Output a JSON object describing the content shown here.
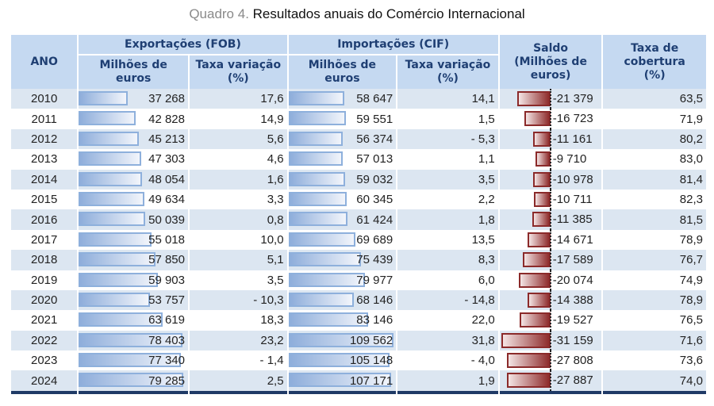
{
  "title": {
    "number": "Quadro 4.",
    "text": "Resultados anuais do Comércio Internacional"
  },
  "headers": {
    "ano": "ANO",
    "exportacoes": "Exportações (FOB)",
    "importacoes": "Importações (CIF)",
    "milhoes_1": "Milhões de",
    "milhoes_2": "euros",
    "taxa_var_1": "Taxa variação",
    "taxa_var_2": "(%)",
    "saldo_1": "Saldo",
    "saldo_2": "(Milhões de",
    "saldo_3": "euros)",
    "cobertura_1": "Taxa de",
    "cobertura_2": "cobertura",
    "cobertura_3": "(%)"
  },
  "colors": {
    "header_bg": "#c5d9f1",
    "header_text": "#1f3f73",
    "row_alt": "#dce6f1",
    "bar_blue": "#8eb0dc",
    "bar_red": "#8b2a2a"
  },
  "rows": [
    {
      "ano": "2010",
      "exp": "37 268",
      "exp_v": 37268,
      "exp_tx": "17,6",
      "imp": "58 647",
      "imp_v": 58647,
      "imp_tx": "14,1",
      "saldo": "-21 379",
      "saldo_v": -21379,
      "cob": "63,5"
    },
    {
      "ano": "2011",
      "exp": "42 828",
      "exp_v": 42828,
      "exp_tx": "14,9",
      "imp": "59 551",
      "imp_v": 59551,
      "imp_tx": "1,5",
      "saldo": "-16 723",
      "saldo_v": -16723,
      "cob": "71,9"
    },
    {
      "ano": "2012",
      "exp": "45 213",
      "exp_v": 45213,
      "exp_tx": "5,6",
      "imp": "56 374",
      "imp_v": 56374,
      "imp_tx": "- 5,3",
      "saldo": "-11 161",
      "saldo_v": -11161,
      "cob": "80,2"
    },
    {
      "ano": "2013",
      "exp": "47 303",
      "exp_v": 47303,
      "exp_tx": "4,6",
      "imp": "57 013",
      "imp_v": 57013,
      "imp_tx": "1,1",
      "saldo": "-9 710",
      "saldo_v": -9710,
      "cob": "83,0"
    },
    {
      "ano": "2014",
      "exp": "48 054",
      "exp_v": 48054,
      "exp_tx": "1,6",
      "imp": "59 032",
      "imp_v": 59032,
      "imp_tx": "3,5",
      "saldo": "-10 978",
      "saldo_v": -10978,
      "cob": "81,4"
    },
    {
      "ano": "2015",
      "exp": "49 634",
      "exp_v": 49634,
      "exp_tx": "3,3",
      "imp": "60 345",
      "imp_v": 60345,
      "imp_tx": "2,2",
      "saldo": "-10 711",
      "saldo_v": -10711,
      "cob": "82,3"
    },
    {
      "ano": "2016",
      "exp": "50 039",
      "exp_v": 50039,
      "exp_tx": "0,8",
      "imp": "61 424",
      "imp_v": 61424,
      "imp_tx": "1,8",
      "saldo": "-11 385",
      "saldo_v": -11385,
      "cob": "81,5"
    },
    {
      "ano": "2017",
      "exp": "55 018",
      "exp_v": 55018,
      "exp_tx": "10,0",
      "imp": "69 689",
      "imp_v": 69689,
      "imp_tx": "13,5",
      "saldo": "-14 671",
      "saldo_v": -14671,
      "cob": "78,9"
    },
    {
      "ano": "2018",
      "exp": "57 850",
      "exp_v": 57850,
      "exp_tx": "5,1",
      "imp": "75 439",
      "imp_v": 75439,
      "imp_tx": "8,3",
      "saldo": "-17 589",
      "saldo_v": -17589,
      "cob": "76,7"
    },
    {
      "ano": "2019",
      "exp": "59 903",
      "exp_v": 59903,
      "exp_tx": "3,5",
      "imp": "79 977",
      "imp_v": 79977,
      "imp_tx": "6,0",
      "saldo": "-20 074",
      "saldo_v": -20074,
      "cob": "74,9"
    },
    {
      "ano": "2020",
      "exp": "53 757",
      "exp_v": 53757,
      "exp_tx": "- 10,3",
      "imp": "68 146",
      "imp_v": 68146,
      "imp_tx": "- 14,8",
      "saldo": "-14 388",
      "saldo_v": -14388,
      "cob": "78,9"
    },
    {
      "ano": "2021",
      "exp": "63 619",
      "exp_v": 63619,
      "exp_tx": "18,3",
      "imp": "83 146",
      "imp_v": 83146,
      "imp_tx": "22,0",
      "saldo": "-19 527",
      "saldo_v": -19527,
      "cob": "76,5"
    },
    {
      "ano": "2022",
      "exp": "78 403",
      "exp_v": 78403,
      "exp_tx": "23,2",
      "imp": "109 562",
      "imp_v": 109562,
      "imp_tx": "31,8",
      "saldo": "-31 159",
      "saldo_v": -31159,
      "cob": "71,6"
    },
    {
      "ano": "2023",
      "exp": "77 340",
      "exp_v": 77340,
      "exp_tx": "- 1,4",
      "imp": "105 148",
      "imp_v": 105148,
      "imp_tx": "- 4,0",
      "saldo": "-27 808",
      "saldo_v": -27808,
      "cob": "73,6"
    },
    {
      "ano": "2024",
      "exp": "79 285",
      "exp_v": 79285,
      "exp_tx": "2,5",
      "imp": "107 171",
      "imp_v": 107171,
      "imp_tx": "1,9",
      "saldo": "-27 887",
      "saldo_v": -27887,
      "cob": "74,0"
    }
  ]
}
